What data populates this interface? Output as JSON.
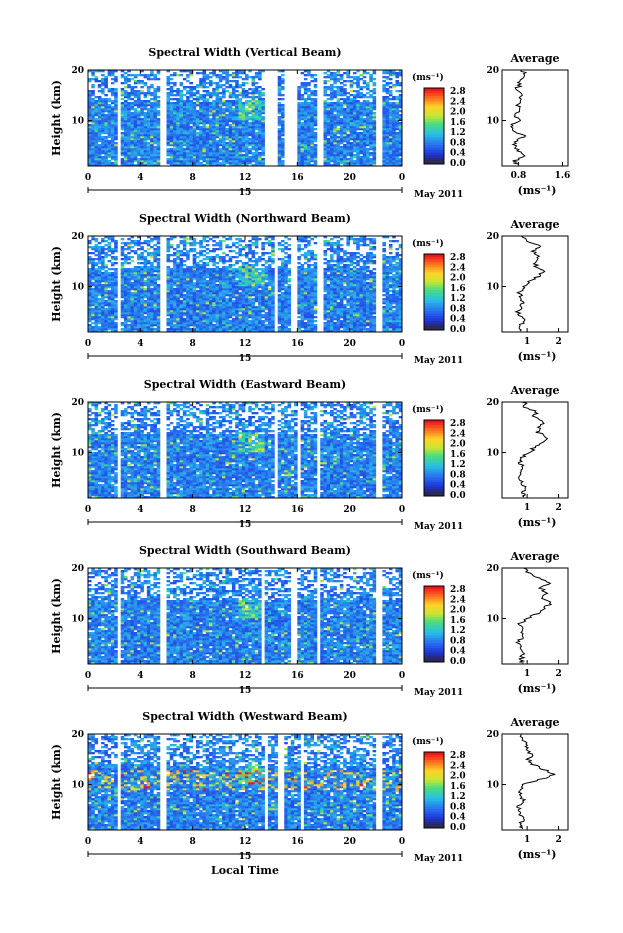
{
  "chart_data": [
    {
      "type": "heatmap",
      "title": "Spectral Width (Vertical Beam)",
      "ylabel": "Height (km)",
      "xlabel": "",
      "x_ticks": [
        "0",
        "4",
        "8",
        "12",
        "16",
        "20",
        "0"
      ],
      "y_ticks": [
        "20",
        "10"
      ],
      "ylim": [
        1,
        20
      ],
      "xlim": [
        0,
        24
      ],
      "date_label": "15",
      "month_label": "May 2011",
      "colorbar": {
        "unit": "(ms⁻¹)",
        "ticks": [
          "2.8",
          "2.4",
          "2.0",
          "1.6",
          "1.2",
          "0.8",
          "0.4",
          "0.0"
        ],
        "range": [
          0,
          2.8
        ]
      },
      "gaps": [
        [
          2.2,
          2.6
        ],
        [
          5.4,
          5.9
        ],
        [
          13.6,
          14.4
        ],
        [
          15.0,
          16.1
        ],
        [
          17.4,
          18.0
        ],
        [
          21.9,
          22.4
        ]
      ],
      "average": {
        "title": "Average",
        "xlabel": "(ms⁻¹)",
        "x_ticks": [
          "0.8",
          "1.6"
        ],
        "xlim": [
          0.5,
          1.7
        ],
        "y_ticks": [
          "20",
          "10"
        ],
        "profile": [
          [
            0.78,
            1.2
          ],
          [
            0.72,
            2
          ],
          [
            0.88,
            3
          ],
          [
            0.8,
            4
          ],
          [
            0.72,
            5
          ],
          [
            0.75,
            6
          ],
          [
            0.92,
            7
          ],
          [
            0.7,
            8
          ],
          [
            0.68,
            9
          ],
          [
            0.8,
            10
          ],
          [
            0.72,
            11
          ],
          [
            0.85,
            12
          ],
          [
            0.78,
            13
          ],
          [
            0.83,
            14
          ],
          [
            0.88,
            15
          ],
          [
            0.75,
            16
          ],
          [
            0.82,
            17
          ],
          [
            0.8,
            18
          ],
          [
            0.9,
            19
          ],
          [
            0.88,
            20
          ]
        ]
      }
    },
    {
      "type": "heatmap",
      "title": "Spectral Width (Northward Beam)",
      "ylabel": "Height (km)",
      "xlabel": "",
      "x_ticks": [
        "0",
        "4",
        "8",
        "12",
        "16",
        "20",
        "0"
      ],
      "y_ticks": [
        "20",
        "10"
      ],
      "ylim": [
        1,
        20
      ],
      "xlim": [
        0,
        24
      ],
      "date_label": "15",
      "month_label": "May 2011",
      "colorbar": {
        "unit": "(ms⁻¹)",
        "ticks": [
          "2.8",
          "2.4",
          "2.0",
          "1.6",
          "1.2",
          "0.8",
          "0.4",
          "0.0"
        ],
        "range": [
          0,
          2.8
        ]
      },
      "gaps": [
        [
          2.2,
          2.6
        ],
        [
          5.4,
          5.9
        ],
        [
          14.2,
          14.5
        ],
        [
          15.5,
          16.1
        ],
        [
          17.4,
          17.9
        ],
        [
          21.9,
          22.4
        ]
      ],
      "average": {
        "title": "Average",
        "xlabel": "(ms⁻¹)",
        "x_ticks": [
          "1",
          "2"
        ],
        "xlim": [
          0.2,
          2.3
        ],
        "y_ticks": [
          "20",
          "10"
        ],
        "profile": [
          [
            0.85,
            1.2
          ],
          [
            0.75,
            2
          ],
          [
            0.9,
            3
          ],
          [
            0.8,
            4
          ],
          [
            0.72,
            5
          ],
          [
            0.78,
            6
          ],
          [
            0.85,
            7
          ],
          [
            0.8,
            8
          ],
          [
            0.75,
            9
          ],
          [
            0.95,
            10
          ],
          [
            1.1,
            11
          ],
          [
            1.35,
            12
          ],
          [
            1.55,
            13
          ],
          [
            1.3,
            14
          ],
          [
            1.25,
            15
          ],
          [
            1.4,
            16
          ],
          [
            1.2,
            17
          ],
          [
            1.45,
            18
          ],
          [
            1.0,
            19
          ],
          [
            0.9,
            20
          ]
        ]
      }
    },
    {
      "type": "heatmap",
      "title": "Spectral Width (Eastward Beam)",
      "ylabel": "Height (km)",
      "xlabel": "",
      "x_ticks": [
        "0",
        "4",
        "8",
        "12",
        "16",
        "20",
        "0"
      ],
      "y_ticks": [
        "20",
        "10"
      ],
      "ylim": [
        1,
        20
      ],
      "xlim": [
        0,
        24
      ],
      "date_label": "15",
      "month_label": "May 2011",
      "colorbar": {
        "unit": "(ms⁻¹)",
        "ticks": [
          "2.8",
          "2.4",
          "2.0",
          "1.6",
          "1.2",
          "0.8",
          "0.4",
          "0.0"
        ],
        "range": [
          0,
          2.8
        ]
      },
      "gaps": [
        [
          2.2,
          2.6
        ],
        [
          5.4,
          5.9
        ],
        [
          14.2,
          14.5
        ],
        [
          16.0,
          16.3
        ],
        [
          17.4,
          17.8
        ],
        [
          21.9,
          22.4
        ]
      ],
      "average": {
        "title": "Average",
        "xlabel": "(ms⁻¹)",
        "x_ticks": [
          "1",
          "2"
        ],
        "xlim": [
          0.2,
          2.3
        ],
        "y_ticks": [
          "20",
          "10"
        ],
        "profile": [
          [
            0.9,
            1.2
          ],
          [
            0.85,
            2
          ],
          [
            0.95,
            3
          ],
          [
            0.8,
            4
          ],
          [
            0.75,
            5
          ],
          [
            0.8,
            6
          ],
          [
            0.85,
            7
          ],
          [
            0.78,
            8
          ],
          [
            0.82,
            9
          ],
          [
            1.05,
            10
          ],
          [
            1.25,
            11
          ],
          [
            1.5,
            12
          ],
          [
            1.6,
            13
          ],
          [
            1.35,
            14
          ],
          [
            1.4,
            15
          ],
          [
            1.55,
            16
          ],
          [
            1.2,
            17
          ],
          [
            1.3,
            18
          ],
          [
            0.95,
            19
          ],
          [
            0.9,
            20
          ]
        ]
      }
    },
    {
      "type": "heatmap",
      "title": "Spectral Width (Southward Beam)",
      "ylabel": "Height (km)",
      "xlabel": "",
      "x_ticks": [
        "0",
        "4",
        "8",
        "12",
        "16",
        "20",
        "0"
      ],
      "y_ticks": [
        "20",
        "10"
      ],
      "ylim": [
        1,
        20
      ],
      "xlim": [
        0,
        24
      ],
      "date_label": "15",
      "month_label": "May 2011",
      "colorbar": {
        "unit": "(ms⁻¹)",
        "ticks": [
          "2.8",
          "2.4",
          "2.0",
          "1.6",
          "1.2",
          "0.8",
          "0.4",
          "0.0"
        ],
        "range": [
          0,
          2.8
        ]
      },
      "gaps": [
        [
          2.2,
          2.6
        ],
        [
          5.4,
          5.9
        ],
        [
          13.3,
          13.6
        ],
        [
          15.5,
          16.0
        ],
        [
          17.4,
          17.8
        ],
        [
          21.9,
          22.4
        ]
      ],
      "average": {
        "title": "Average",
        "xlabel": "(ms⁻¹)",
        "x_ticks": [
          "1",
          "2"
        ],
        "xlim": [
          0.2,
          2.3
        ],
        "y_ticks": [
          "20",
          "10"
        ],
        "profile": [
          [
            0.85,
            1.2
          ],
          [
            0.8,
            2
          ],
          [
            0.9,
            3
          ],
          [
            0.78,
            4
          ],
          [
            0.72,
            5
          ],
          [
            0.8,
            6
          ],
          [
            0.9,
            7
          ],
          [
            0.8,
            8
          ],
          [
            0.78,
            9
          ],
          [
            1.05,
            10
          ],
          [
            1.3,
            11
          ],
          [
            1.55,
            12
          ],
          [
            1.75,
            13
          ],
          [
            1.5,
            14
          ],
          [
            1.65,
            15
          ],
          [
            1.45,
            16
          ],
          [
            1.7,
            17
          ],
          [
            1.35,
            18
          ],
          [
            1.05,
            19
          ],
          [
            0.9,
            20
          ]
        ]
      }
    },
    {
      "type": "heatmap",
      "title": "Spectral Width (Westward Beam)",
      "ylabel": "Height (km)",
      "xlabel": "Local Time",
      "x_ticks": [
        "0",
        "4",
        "8",
        "12",
        "16",
        "20",
        "0"
      ],
      "y_ticks": [
        "20",
        "10"
      ],
      "ylim": [
        1,
        20
      ],
      "xlim": [
        0,
        24
      ],
      "date_label": "15",
      "month_label": "May 2011",
      "colorbar": {
        "unit": "(ms⁻¹)",
        "ticks": [
          "2.8",
          "2.4",
          "2.0",
          "1.6",
          "1.2",
          "0.8",
          "0.4",
          "0.0"
        ],
        "range": [
          0,
          2.8
        ]
      },
      "gaps": [
        [
          2.2,
          2.6
        ],
        [
          5.4,
          5.9
        ],
        [
          13.4,
          13.7
        ],
        [
          14.6,
          15.0
        ],
        [
          16.2,
          16.5
        ],
        [
          21.9,
          22.4
        ]
      ],
      "average": {
        "title": "Average",
        "xlabel": "(ms⁻¹)",
        "x_ticks": [
          "1",
          "2"
        ],
        "xlim": [
          0.2,
          2.3
        ],
        "y_ticks": [
          "20",
          "10"
        ],
        "profile": [
          [
            0.8,
            1.2
          ],
          [
            0.75,
            2
          ],
          [
            0.85,
            3
          ],
          [
            0.78,
            4
          ],
          [
            0.7,
            5
          ],
          [
            0.78,
            6
          ],
          [
            0.85,
            7
          ],
          [
            0.8,
            8
          ],
          [
            0.75,
            9
          ],
          [
            0.9,
            10
          ],
          [
            1.4,
            11
          ],
          [
            1.9,
            12
          ],
          [
            1.5,
            13
          ],
          [
            1.2,
            14
          ],
          [
            1.05,
            15
          ],
          [
            1.15,
            16
          ],
          [
            0.95,
            17
          ],
          [
            1.0,
            18
          ],
          [
            0.85,
            19
          ],
          [
            0.8,
            20
          ]
        ]
      }
    }
  ]
}
